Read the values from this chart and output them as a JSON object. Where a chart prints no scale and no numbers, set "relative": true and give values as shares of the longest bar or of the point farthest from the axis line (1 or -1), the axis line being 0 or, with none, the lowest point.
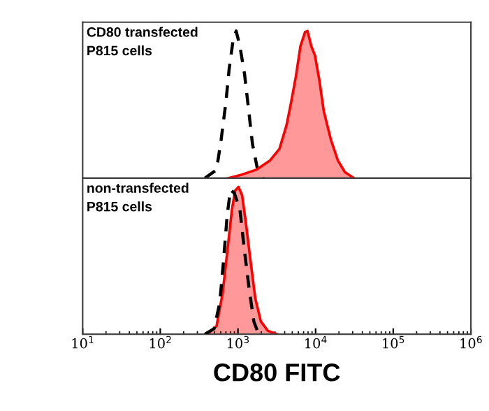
{
  "chart_data": [
    {
      "type": "area",
      "relative": true,
      "log": "x",
      "xlim": [
        10,
        1000000
      ],
      "tick_labels": false,
      "grid": false,
      "legend": false,
      "annotations": [
        "CD80 transfected\nP815 cells"
      ],
      "series": [
        {
          "type": "line",
          "line_style": "dashed",
          "color": "#000000",
          "x": [
            376,
            530,
            608,
            700,
            769,
            861,
            948,
            1059,
            1216,
            1358,
            1538,
            1766,
            2113
          ],
          "values": [
            0,
            0.057,
            0.263,
            0.517,
            0.738,
            0.929,
            1.0,
            0.898,
            0.708,
            0.486,
            0.232,
            0.073,
            0
          ]
        },
        {
          "line_style": "solid",
          "color": "#ff0000",
          "x": [
            748,
            1132,
            1714,
            2594,
            3428,
            4217,
            4842,
            5572,
            6383,
            7328,
            7870,
            8790,
            9795,
            11090,
            12760,
            15700,
            19320,
            23820,
            31260
          ],
          "values": [
            0,
            0.025,
            0.057,
            0.121,
            0.2,
            0.359,
            0.517,
            0.692,
            0.898,
            0.994,
            1.0,
            0.898,
            0.835,
            0.676,
            0.454,
            0.263,
            0.121,
            0.041,
            0
          ]
        }
      ]
    },
    {
      "type": "area",
      "relative": true,
      "log": "x",
      "xlim": [
        10,
        1000000
      ],
      "xticks": [
        {
          "value": 10,
          "label": "10$^{1}$"
        },
        {
          "value": 100,
          "label": "10$^{2}$"
        },
        {
          "value": 1000,
          "label": "10$^{3}$"
        },
        {
          "value": 10000,
          "label": "10$^{4}$"
        },
        {
          "value": 100000,
          "label": "10$^{5}$"
        },
        {
          "value": 1000000,
          "label": "10$^{6}$"
        }
      ],
      "tick_labels": "x",
      "grid": false,
      "legend": false,
      "xlabel": "CD80 FITC",
      "annotations": [
        "non-transfected\nP815 cells"
      ],
      "series": [
        {
          "line_style": "solid",
          "color": "#ff0000",
          "x": [
            402,
            530,
            634,
            729,
            837,
            920,
            1016,
            1132,
            1268,
            1452,
            1671,
            1972,
            2432,
            3199
          ],
          "values": [
            0,
            0.054,
            0.276,
            0.562,
            0.848,
            0.975,
            1.0,
            0.943,
            0.752,
            0.498,
            0.244,
            0.086,
            0.022,
            0
          ]
        },
        {
          "type": "line",
          "line_style": "dashed",
          "color": "#000000",
          "x": [
            376,
            494,
            583,
            652,
            729,
            803,
            897,
            1059,
            1216,
            1393,
            1603,
            1841
          ],
          "values": [
            0,
            0.038,
            0.213,
            0.498,
            0.816,
            0.981,
            0.959,
            0.848,
            0.562,
            0.308,
            0.086,
            0
          ]
        }
      ]
    }
  ]
}
